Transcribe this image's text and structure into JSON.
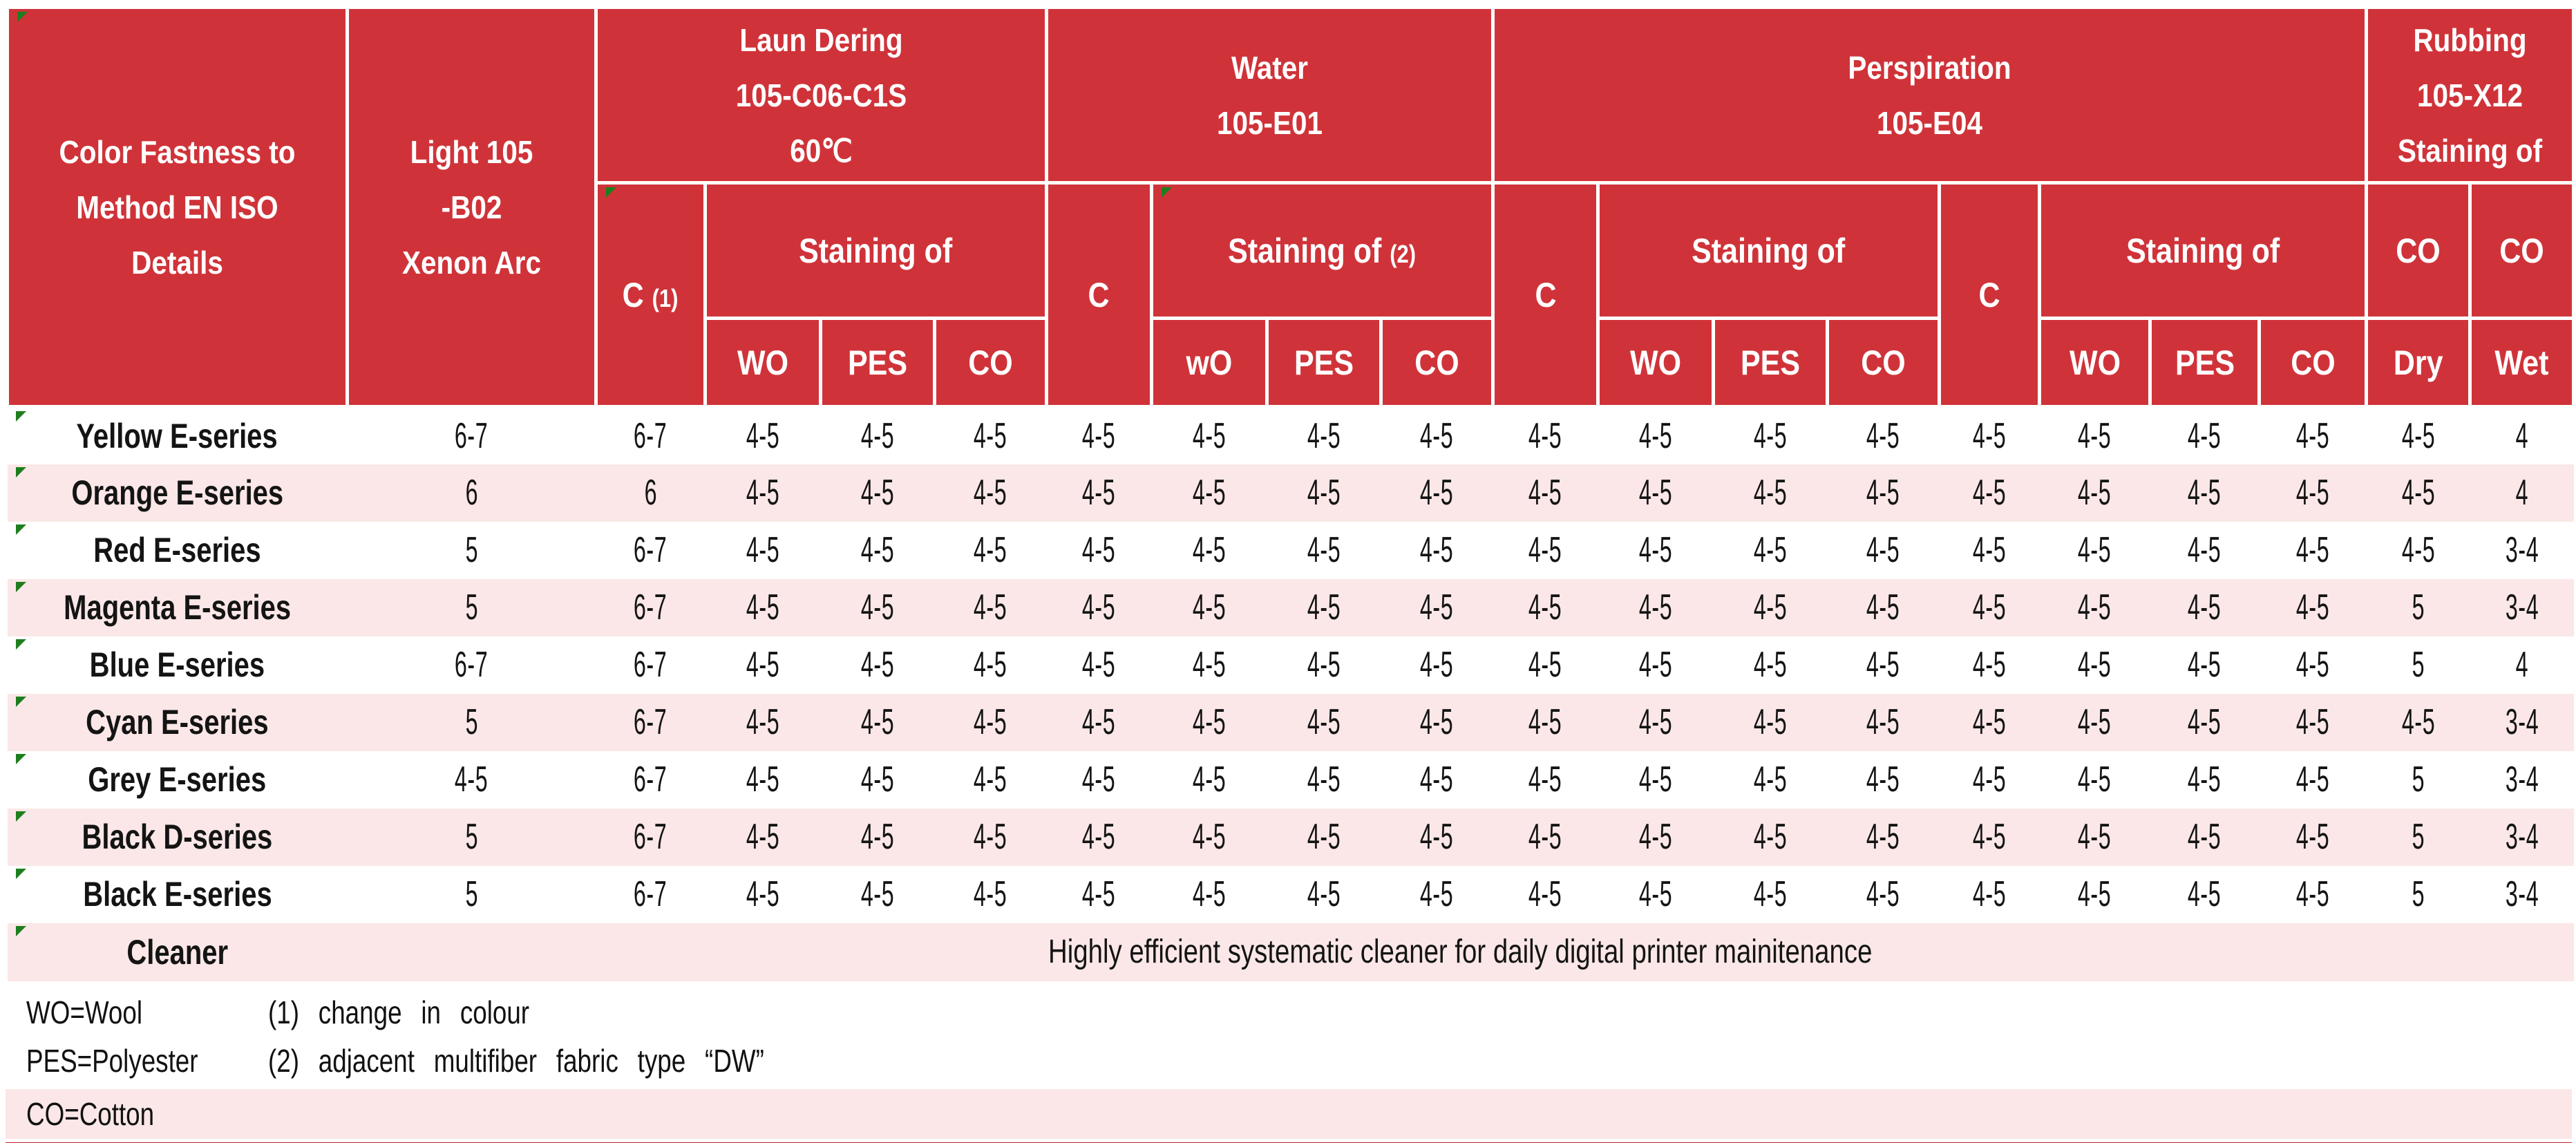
{
  "colors": {
    "header_red": "#cf3339",
    "bottom_bar_red": "#c5262d",
    "row_pink": "#fbe7e7",
    "flag_green": "#1e7e1e",
    "text_ink": "#141414"
  },
  "table": {
    "corner": [
      "Color Fastness to",
      "Method EN ISO",
      "Details"
    ],
    "light": [
      "Light 105",
      "-B02",
      "Xenon Arc"
    ],
    "groups": {
      "laundering": [
        "Laun Dering",
        "105-C06-C1S",
        "60℃"
      ],
      "water": [
        "Water",
        "105-E01"
      ],
      "perspiration": [
        "Perspiration",
        "105-E04"
      ],
      "rubbing": [
        "Rubbing",
        "105-X12",
        "Staining of"
      ]
    },
    "header": {
      "c1_label": "C",
      "c1_note": "(1)",
      "staining_of": "Staining of",
      "staining_note2": "(2)",
      "c_label": "C",
      "rub_co": "CO",
      "sub": {
        "wo": "WO",
        "wo_lower": "wO",
        "pes": "PES",
        "co": "CO",
        "dry": "Dry",
        "wet": "Wet"
      }
    },
    "rows": [
      {
        "label": "Yellow E-series",
        "values": [
          "6-7",
          "6-7",
          "4-5",
          "4-5",
          "4-5",
          "4-5",
          "4-5",
          "4-5",
          "4-5",
          "4-5",
          "4-5",
          "4-5",
          "4-5",
          "4-5",
          "4-5",
          "4-5",
          "4-5",
          "4-5",
          "4"
        ]
      },
      {
        "label": "Orange E-series",
        "values": [
          "6",
          "6",
          "4-5",
          "4-5",
          "4-5",
          "4-5",
          "4-5",
          "4-5",
          "4-5",
          "4-5",
          "4-5",
          "4-5",
          "4-5",
          "4-5",
          "4-5",
          "4-5",
          "4-5",
          "4-5",
          "4"
        ]
      },
      {
        "label": "Red E-series",
        "values": [
          "5",
          "6-7",
          "4-5",
          "4-5",
          "4-5",
          "4-5",
          "4-5",
          "4-5",
          "4-5",
          "4-5",
          "4-5",
          "4-5",
          "4-5",
          "4-5",
          "4-5",
          "4-5",
          "4-5",
          "4-5",
          "3-4"
        ]
      },
      {
        "label": "Magenta E-series",
        "values": [
          "5",
          "6-7",
          "4-5",
          "4-5",
          "4-5",
          "4-5",
          "4-5",
          "4-5",
          "4-5",
          "4-5",
          "4-5",
          "4-5",
          "4-5",
          "4-5",
          "4-5",
          "4-5",
          "4-5",
          "5",
          "3-4"
        ]
      },
      {
        "label": "Blue E-series",
        "values": [
          "6-7",
          "6-7",
          "4-5",
          "4-5",
          "4-5",
          "4-5",
          "4-5",
          "4-5",
          "4-5",
          "4-5",
          "4-5",
          "4-5",
          "4-5",
          "4-5",
          "4-5",
          "4-5",
          "4-5",
          "5",
          "4"
        ]
      },
      {
        "label": "Cyan E-series",
        "values": [
          "5",
          "6-7",
          "4-5",
          "4-5",
          "4-5",
          "4-5",
          "4-5",
          "4-5",
          "4-5",
          "4-5",
          "4-5",
          "4-5",
          "4-5",
          "4-5",
          "4-5",
          "4-5",
          "4-5",
          "4-5",
          "3-4"
        ]
      },
      {
        "label": "Grey E-series",
        "values": [
          "4-5",
          "6-7",
          "4-5",
          "4-5",
          "4-5",
          "4-5",
          "4-5",
          "4-5",
          "4-5",
          "4-5",
          "4-5",
          "4-5",
          "4-5",
          "4-5",
          "4-5",
          "4-5",
          "4-5",
          "5",
          "3-4"
        ]
      },
      {
        "label": "Black D-series",
        "values": [
          "5",
          "6-7",
          "4-5",
          "4-5",
          "4-5",
          "4-5",
          "4-5",
          "4-5",
          "4-5",
          "4-5",
          "4-5",
          "4-5",
          "4-5",
          "4-5",
          "4-5",
          "4-5",
          "4-5",
          "5",
          "3-4"
        ]
      },
      {
        "label": "Black E-series",
        "values": [
          "5",
          "6-7",
          "4-5",
          "4-5",
          "4-5",
          "4-5",
          "4-5",
          "4-5",
          "4-5",
          "4-5",
          "4-5",
          "4-5",
          "4-5",
          "4-5",
          "4-5",
          "4-5",
          "4-5",
          "5",
          "3-4"
        ]
      }
    ],
    "cleaner": {
      "label": "Cleaner",
      "text": "Highly efficient systematic cleaner for daily digital printer mainitenance"
    }
  },
  "footer": {
    "abbr": [
      "WO=Wool",
      "PES=Polyester",
      "CO=Cotton"
    ],
    "notes": [
      "(1) change in colour",
      "(2) adjacent multifiber fabric type “DW”"
    ]
  }
}
